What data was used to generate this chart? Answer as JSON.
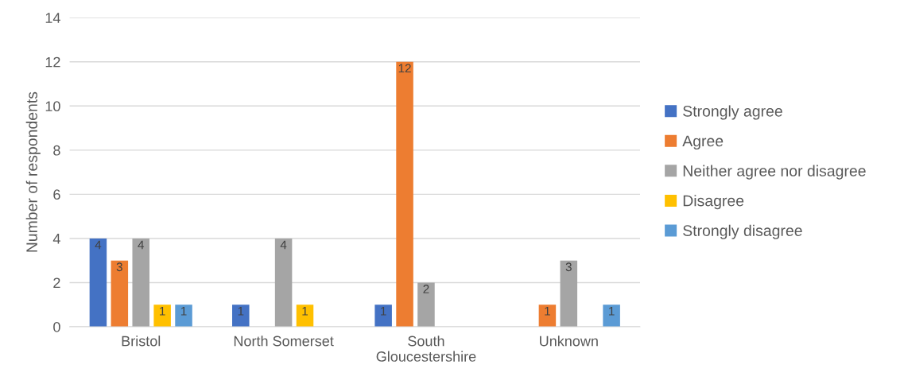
{
  "chart_data": {
    "type": "bar",
    "ylabel": "Number of respondents",
    "categories": [
      "Bristol",
      "North Somerset",
      "South Gloucestershire",
      "Unknown"
    ],
    "series": [
      {
        "name": "Strongly agree",
        "color": "#4472c4",
        "values": [
          4,
          1,
          1,
          0
        ],
        "value_labels": [
          "4",
          "1",
          "1",
          null
        ]
      },
      {
        "name": "Agree",
        "color": "#ed7d31",
        "values": [
          3,
          0,
          12,
          1
        ],
        "value_labels": [
          "3",
          null,
          "12",
          "1"
        ]
      },
      {
        "name": "Neither agree nor disagree",
        "color": "#a5a5a5",
        "values": [
          4,
          4,
          2,
          3
        ],
        "value_labels": [
          "4",
          "4",
          "2",
          "3"
        ]
      },
      {
        "name": "Disagree",
        "color": "#ffc000",
        "values": [
          1,
          1,
          0,
          0
        ],
        "value_labels": [
          "1",
          "1",
          null,
          null
        ]
      },
      {
        "name": "Strongly disagree",
        "color": "#5b9bd5",
        "values": [
          1,
          0,
          0,
          1
        ],
        "value_labels": [
          "1",
          null,
          null,
          "1"
        ]
      }
    ],
    "ylim": [
      0,
      14
    ],
    "yticks": [
      0,
      2,
      4,
      6,
      8,
      10,
      12,
      14
    ],
    "grid": "y",
    "legend": "right"
  }
}
